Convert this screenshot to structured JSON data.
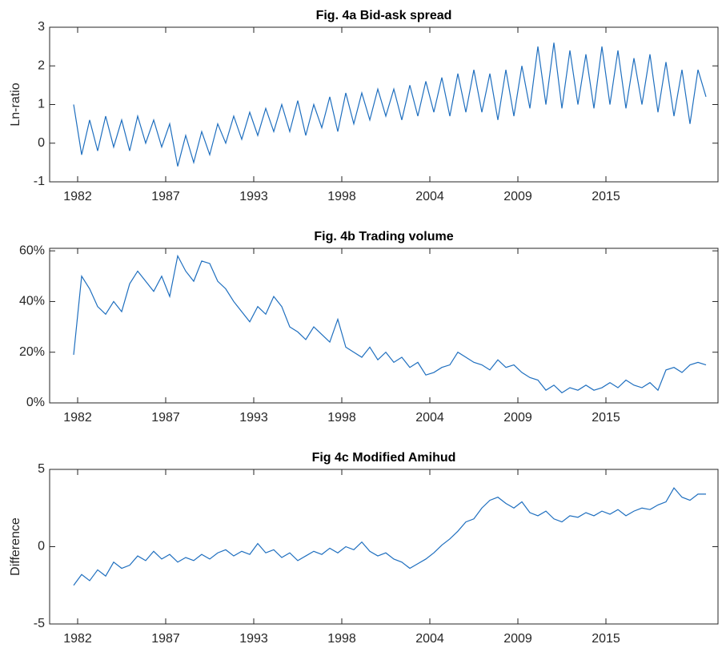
{
  "chart_data": [
    {
      "type": "line",
      "title": "Fig. 4a Bid-ask spread",
      "y_label": "Ln-ratio",
      "x": [
        1981.75,
        1982.25,
        1982.75,
        1983.25,
        1983.75,
        1984.25,
        1984.75,
        1985.25,
        1985.75,
        1986.25,
        1986.75,
        1987.25,
        1987.75,
        1988.25,
        1988.75,
        1989.25,
        1989.75,
        1990.25,
        1990.75,
        1991.25,
        1991.75,
        1992.25,
        1992.75,
        1993.25,
        1993.75,
        1994.25,
        1994.75,
        1995.25,
        1995.75,
        1996.25,
        1996.75,
        1997.25,
        1997.75,
        1998.25,
        1998.75,
        1999.25,
        1999.75,
        2000.25,
        2000.75,
        2001.25,
        2001.75,
        2002.25,
        2002.75,
        2003.25,
        2003.75,
        2004.25,
        2004.75,
        2005.25,
        2005.75,
        2006.25,
        2006.75,
        2007.25,
        2007.75,
        2008.25,
        2008.75,
        2009.25,
        2009.75,
        2010.25,
        2010.75,
        2011.25,
        2011.75,
        2012.25,
        2012.75,
        2013.25,
        2013.75,
        2014.25,
        2014.75,
        2015.25,
        2015.75,
        2016.25,
        2016.75,
        2017.25,
        2017.75,
        2018.25,
        2018.75,
        2019.25,
        2019.75,
        2020.25,
        2020.75,
        2021.25
      ],
      "series": [
        {
          "color": "#1f6fbf",
          "values": [
            1.0,
            -0.3,
            0.6,
            -0.2,
            0.7,
            -0.1,
            0.6,
            -0.2,
            0.7,
            0.0,
            0.6,
            -0.1,
            0.5,
            -0.6,
            0.2,
            -0.5,
            0.3,
            -0.3,
            0.5,
            0.0,
            0.7,
            0.1,
            0.8,
            0.2,
            0.9,
            0.3,
            1.0,
            0.3,
            1.1,
            0.2,
            1.0,
            0.4,
            1.2,
            0.3,
            1.3,
            0.5,
            1.3,
            0.6,
            1.4,
            0.7,
            1.4,
            0.6,
            1.5,
            0.7,
            1.6,
            0.8,
            1.7,
            0.7,
            1.8,
            0.8,
            1.9,
            0.8,
            1.8,
            0.6,
            1.9,
            0.7,
            2.0,
            0.9,
            2.5,
            1.0,
            2.6,
            0.9,
            2.4,
            1.0,
            2.3,
            0.9,
            2.5,
            1.0,
            2.4,
            0.9,
            2.2,
            1.0,
            2.3,
            0.8,
            2.1,
            0.7,
            1.9,
            0.5,
            1.9,
            1.2
          ]
        }
      ],
      "xlim": [
        1980.25,
        2022.0
      ],
      "xticks": [
        {
          "value": 1982.0,
          "label": "1982"
        },
        {
          "value": 1987.5,
          "label": "1987"
        },
        {
          "value": 1993.0,
          "label": "1993"
        },
        {
          "value": 1998.5,
          "label": "1998"
        },
        {
          "value": 2004.0,
          "label": "2004"
        },
        {
          "value": 2009.5,
          "label": "2009"
        },
        {
          "value": 2015.0,
          "label": "2015"
        }
      ],
      "ylim": [
        -1,
        3
      ],
      "yticks": [
        -1,
        0,
        1,
        2,
        3
      ],
      "grid": false
    },
    {
      "type": "line",
      "title": "Fig. 4b Trading volume",
      "x": [
        1981.75,
        1982.25,
        1982.75,
        1983.25,
        1983.75,
        1984.25,
        1984.75,
        1985.25,
        1985.75,
        1986.25,
        1986.75,
        1987.25,
        1987.75,
        1988.25,
        1988.75,
        1989.25,
        1989.75,
        1990.25,
        1990.75,
        1991.25,
        1991.75,
        1992.25,
        1992.75,
        1993.25,
        1993.75,
        1994.25,
        1994.75,
        1995.25,
        1995.75,
        1996.25,
        1996.75,
        1997.25,
        1997.75,
        1998.25,
        1998.75,
        1999.25,
        1999.75,
        2000.25,
        2000.75,
        2001.25,
        2001.75,
        2002.25,
        2002.75,
        2003.25,
        2003.75,
        2004.25,
        2004.75,
        2005.25,
        2005.75,
        2006.25,
        2006.75,
        2007.25,
        2007.75,
        2008.25,
        2008.75,
        2009.25,
        2009.75,
        2010.25,
        2010.75,
        2011.25,
        2011.75,
        2012.25,
        2012.75,
        2013.25,
        2013.75,
        2014.25,
        2014.75,
        2015.25,
        2015.75,
        2016.25,
        2016.75,
        2017.25,
        2017.75,
        2018.25,
        2018.75,
        2019.25,
        2019.75,
        2020.25,
        2020.75,
        2021.25
      ],
      "series": [
        {
          "color": "#1f6fbf",
          "values": [
            19,
            50,
            45,
            38,
            35,
            40,
            36,
            47,
            52,
            48,
            44,
            50,
            42,
            58,
            52,
            48,
            56,
            55,
            48,
            45,
            40,
            36,
            32,
            38,
            35,
            42,
            38,
            30,
            28,
            25,
            30,
            27,
            24,
            33,
            22,
            20,
            18,
            22,
            17,
            20,
            16,
            18,
            14,
            16,
            11,
            12,
            14,
            15,
            20,
            18,
            16,
            15,
            13,
            17,
            14,
            15,
            12,
            10,
            9,
            5,
            7,
            4,
            6,
            5,
            7,
            5,
            6,
            8,
            6,
            9,
            7,
            6,
            8,
            5,
            13,
            14,
            12,
            15,
            16,
            15
          ]
        }
      ],
      "xlim": [
        1980.25,
        2022.0
      ],
      "xticks": [
        {
          "value": 1982.0,
          "label": "1982"
        },
        {
          "value": 1987.5,
          "label": "1987"
        },
        {
          "value": 1993.0,
          "label": "1993"
        },
        {
          "value": 1998.5,
          "label": "1998"
        },
        {
          "value": 2004.0,
          "label": "2004"
        },
        {
          "value": 2009.5,
          "label": "2009"
        },
        {
          "value": 2015.0,
          "label": "2015"
        }
      ],
      "ylim": [
        0,
        61
      ],
      "yticks": [
        {
          "value": 0,
          "label": "0%"
        },
        {
          "value": 20,
          "label": "20%"
        },
        {
          "value": 40,
          "label": "40%"
        },
        {
          "value": 60,
          "label": "60%"
        }
      ],
      "grid": false
    },
    {
      "type": "line",
      "title": "Fig 4c Modified Amihud",
      "y_label": "Difference",
      "x": [
        1981.75,
        1982.25,
        1982.75,
        1983.25,
        1983.75,
        1984.25,
        1984.75,
        1985.25,
        1985.75,
        1986.25,
        1986.75,
        1987.25,
        1987.75,
        1988.25,
        1988.75,
        1989.25,
        1989.75,
        1990.25,
        1990.75,
        1991.25,
        1991.75,
        1992.25,
        1992.75,
        1993.25,
        1993.75,
        1994.25,
        1994.75,
        1995.25,
        1995.75,
        1996.25,
        1996.75,
        1997.25,
        1997.75,
        1998.25,
        1998.75,
        1999.25,
        1999.75,
        2000.25,
        2000.75,
        2001.25,
        2001.75,
        2002.25,
        2002.75,
        2003.25,
        2003.75,
        2004.25,
        2004.75,
        2005.25,
        2005.75,
        2006.25,
        2006.75,
        2007.25,
        2007.75,
        2008.25,
        2008.75,
        2009.25,
        2009.75,
        2010.25,
        2010.75,
        2011.25,
        2011.75,
        2012.25,
        2012.75,
        2013.25,
        2013.75,
        2014.25,
        2014.75,
        2015.25,
        2015.75,
        2016.25,
        2016.75,
        2017.25,
        2017.75,
        2018.25,
        2018.75,
        2019.25,
        2019.75,
        2020.25,
        2020.75,
        2021.25
      ],
      "series": [
        {
          "color": "#1f6fbf",
          "values": [
            -2.5,
            -1.8,
            -2.2,
            -1.5,
            -1.9,
            -1.0,
            -1.4,
            -1.2,
            -0.6,
            -0.9,
            -0.3,
            -0.8,
            -0.5,
            -1.0,
            -0.7,
            -0.9,
            -0.5,
            -0.8,
            -0.4,
            -0.2,
            -0.6,
            -0.3,
            -0.5,
            0.2,
            -0.4,
            -0.2,
            -0.7,
            -0.4,
            -0.9,
            -0.6,
            -0.3,
            -0.5,
            -0.1,
            -0.4,
            0.0,
            -0.2,
            0.3,
            -0.3,
            -0.6,
            -0.4,
            -0.8,
            -1.0,
            -1.4,
            -1.1,
            -0.8,
            -0.4,
            0.1,
            0.5,
            1.0,
            1.6,
            1.8,
            2.5,
            3.0,
            3.2,
            2.8,
            2.5,
            2.9,
            2.2,
            2.0,
            2.3,
            1.8,
            1.6,
            2.0,
            1.9,
            2.2,
            2.0,
            2.3,
            2.1,
            2.4,
            2.0,
            2.3,
            2.5,
            2.4,
            2.7,
            2.9,
            3.8,
            3.2,
            3.0,
            3.4,
            3.4
          ]
        }
      ],
      "xlim": [
        1980.25,
        2022.0
      ],
      "xticks": [
        {
          "value": 1982.0,
          "label": "1982"
        },
        {
          "value": 1987.5,
          "label": "1987"
        },
        {
          "value": 1993.0,
          "label": "1993"
        },
        {
          "value": 1998.5,
          "label": "1998"
        },
        {
          "value": 2004.0,
          "label": "2004"
        },
        {
          "value": 2009.5,
          "label": "2009"
        },
        {
          "value": 2015.0,
          "label": "2015"
        }
      ],
      "ylim": [
        -5,
        5
      ],
      "yticks": [
        -5,
        0,
        5
      ],
      "grid": false
    }
  ]
}
